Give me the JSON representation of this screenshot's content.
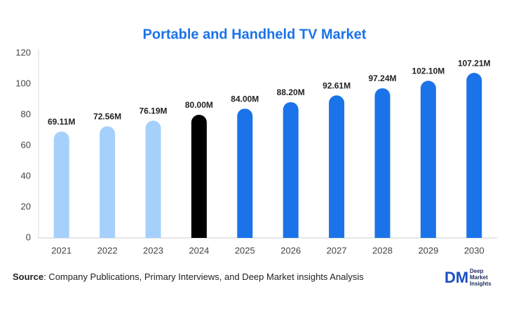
{
  "chart_data": {
    "type": "bar",
    "title": "Portable and Handheld TV Market",
    "categories": [
      "2021",
      "2022",
      "2023",
      "2024",
      "2025",
      "2026",
      "2027",
      "2028",
      "2029",
      "2030"
    ],
    "values": [
      69.11,
      72.56,
      76.19,
      80.0,
      84.0,
      88.2,
      92.61,
      97.24,
      102.1,
      107.21
    ],
    "value_labels": [
      "69.11M",
      "72.56M",
      "76.19M",
      "80.00M",
      "84.00M",
      "88.20M",
      "92.61M",
      "97.24M",
      "102.10M",
      "107.21M"
    ],
    "colors": [
      "#a5d0fb",
      "#a5d0fb",
      "#a5d0fb",
      "#000000",
      "#1a73e8",
      "#1a73e8",
      "#1a73e8",
      "#1a73e8",
      "#1a73e8",
      "#1a73e8"
    ],
    "ylim": [
      0,
      120
    ],
    "yticks": [
      0,
      20,
      40,
      60,
      80,
      100,
      120
    ],
    "grid": false
  },
  "source": {
    "label": "Source",
    "text": ": Company Publications, Primary Interviews, and Deep Market insights Analysis"
  },
  "logo": {
    "mark": "DM",
    "lines": [
      "Deep",
      "Market",
      "Insights"
    ]
  }
}
